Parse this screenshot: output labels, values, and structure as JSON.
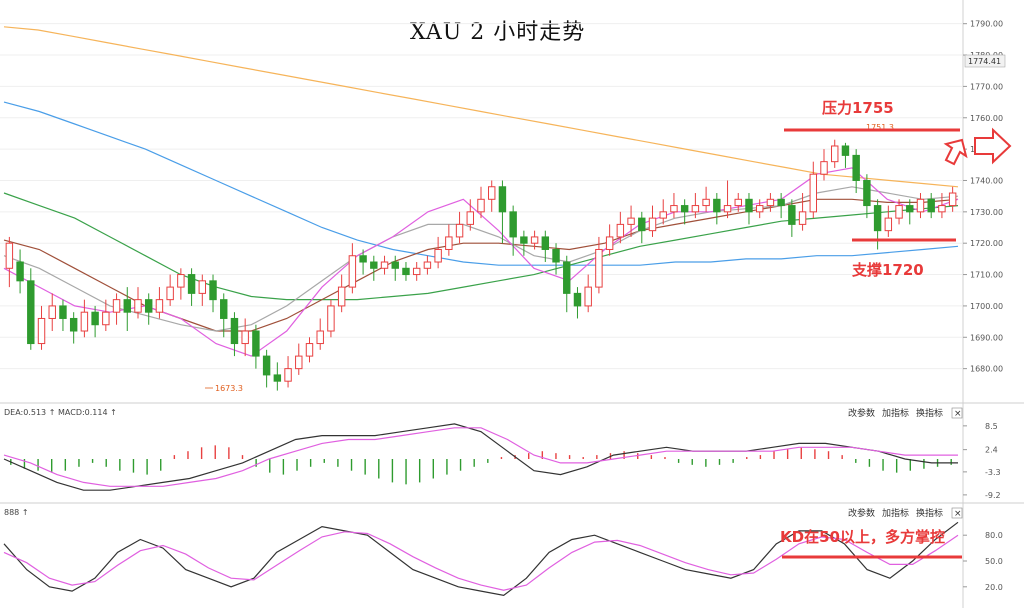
{
  "title": "XAU 2 小时走势",
  "panels": {
    "macd": {
      "header_dea": "DEA:0.513 ↑",
      "header_macd": "MACD:0.114 ↑",
      "ticks": [
        "8.5",
        "2.4",
        "-3.3",
        "-9.2"
      ]
    },
    "kd": {
      "header": "888 ↑",
      "ticks": [
        "80.0",
        "50.0",
        "20.0"
      ]
    },
    "controls": {
      "params": "改参数",
      "add": "加指标",
      "switch": "换指标",
      "close": "×"
    }
  },
  "annotations": {
    "resistance": "压力1755",
    "support": "支撑1720",
    "kd_note": "KD在50以上，多方掌控",
    "low_label": "1673.3",
    "price_tag": "1774.41",
    "high_label": "1751.3"
  },
  "colors": {
    "up": "#e84040",
    "down": "#2f9b2f",
    "annotation": "#e83a3a",
    "ma_orange": "#f6b45a",
    "ma_blue": "#4a9ee8",
    "ma_green": "#3aa24a",
    "ma_brown": "#a0503a",
    "ma_gray": "#a8a8a8",
    "ma_pink": "#e060e0",
    "k_line": "#333333",
    "d_line": "#e060e0"
  },
  "chart_data": {
    "type": "candlestick",
    "title": "XAU 2 小时走势",
    "y_ticks": [
      1790.0,
      1780.0,
      1770.0,
      1760.0,
      1750.0,
      1740.0,
      1730.0,
      1720.0,
      1710.0,
      1700.0,
      1690.0,
      1680.0
    ],
    "ylim": [
      1670,
      1795
    ],
    "current_price": 1774.41,
    "candles": [
      [
        1712,
        1720,
        1706,
        1722
      ],
      [
        1714,
        1708,
        1704,
        1718
      ],
      [
        1708,
        1688,
        1686,
        1712
      ],
      [
        1688,
        1696,
        1686,
        1700
      ],
      [
        1696,
        1700,
        1692,
        1704
      ],
      [
        1700,
        1696,
        1692,
        1702
      ],
      [
        1696,
        1692,
        1688,
        1698
      ],
      [
        1692,
        1698,
        1690,
        1702
      ],
      [
        1698,
        1694,
        1690,
        1700
      ],
      [
        1694,
        1698,
        1692,
        1702
      ],
      [
        1698,
        1702,
        1694,
        1704
      ],
      [
        1702,
        1698,
        1692,
        1706
      ],
      [
        1698,
        1702,
        1696,
        1706
      ],
      [
        1702,
        1698,
        1694,
        1704
      ],
      [
        1698,
        1702,
        1696,
        1706
      ],
      [
        1702,
        1706,
        1700,
        1710
      ],
      [
        1706,
        1710,
        1702,
        1712
      ],
      [
        1710,
        1704,
        1700,
        1712
      ],
      [
        1704,
        1708,
        1700,
        1710
      ],
      [
        1708,
        1702,
        1698,
        1710
      ],
      [
        1702,
        1696,
        1690,
        1704
      ],
      [
        1696,
        1688,
        1684,
        1698
      ],
      [
        1688,
        1692,
        1684,
        1696
      ],
      [
        1692,
        1684,
        1680,
        1694
      ],
      [
        1684,
        1678,
        1674,
        1686
      ],
      [
        1678,
        1676,
        1673,
        1682
      ],
      [
        1676,
        1680,
        1674,
        1684
      ],
      [
        1680,
        1684,
        1678,
        1688
      ],
      [
        1684,
        1688,
        1682,
        1690
      ],
      [
        1688,
        1692,
        1686,
        1696
      ],
      [
        1692,
        1700,
        1690,
        1702
      ],
      [
        1700,
        1706,
        1698,
        1710
      ],
      [
        1706,
        1716,
        1704,
        1720
      ],
      [
        1716,
        1714,
        1710,
        1718
      ],
      [
        1714,
        1712,
        1708,
        1716
      ],
      [
        1712,
        1714,
        1710,
        1716
      ],
      [
        1714,
        1712,
        1708,
        1716
      ],
      [
        1712,
        1710,
        1708,
        1714
      ],
      [
        1710,
        1712,
        1708,
        1714
      ],
      [
        1712,
        1714,
        1710,
        1716
      ],
      [
        1714,
        1718,
        1712,
        1722
      ],
      [
        1718,
        1722,
        1716,
        1726
      ],
      [
        1722,
        1726,
        1720,
        1730
      ],
      [
        1726,
        1730,
        1724,
        1734
      ],
      [
        1730,
        1734,
        1728,
        1738
      ],
      [
        1734,
        1738,
        1730,
        1740
      ],
      [
        1738,
        1730,
        1720,
        1740
      ],
      [
        1730,
        1722,
        1716,
        1732
      ],
      [
        1722,
        1720,
        1716,
        1724
      ],
      [
        1720,
        1722,
        1718,
        1724
      ],
      [
        1722,
        1718,
        1714,
        1724
      ],
      [
        1718,
        1714,
        1710,
        1720
      ],
      [
        1714,
        1704,
        1698,
        1716
      ],
      [
        1704,
        1700,
        1696,
        1706
      ],
      [
        1700,
        1706,
        1698,
        1710
      ],
      [
        1706,
        1718,
        1704,
        1722
      ],
      [
        1718,
        1722,
        1716,
        1726
      ],
      [
        1722,
        1726,
        1720,
        1730
      ],
      [
        1726,
        1728,
        1722,
        1732
      ],
      [
        1728,
        1724,
        1720,
        1730
      ],
      [
        1724,
        1728,
        1722,
        1732
      ],
      [
        1728,
        1730,
        1726,
        1734
      ],
      [
        1730,
        1732,
        1728,
        1736
      ],
      [
        1732,
        1730,
        1726,
        1734
      ],
      [
        1730,
        1732,
        1728,
        1736
      ],
      [
        1732,
        1734,
        1730,
        1738
      ],
      [
        1734,
        1730,
        1726,
        1736
      ],
      [
        1730,
        1732,
        1728,
        1740
      ],
      [
        1732,
        1734,
        1730,
        1736
      ],
      [
        1734,
        1730,
        1726,
        1736
      ],
      [
        1730,
        1732,
        1728,
        1734
      ],
      [
        1732,
        1734,
        1730,
        1736
      ],
      [
        1734,
        1732,
        1728,
        1736
      ],
      [
        1732,
        1726,
        1722,
        1734
      ],
      [
        1726,
        1730,
        1724,
        1736
      ],
      [
        1730,
        1742,
        1728,
        1746
      ],
      [
        1742,
        1746,
        1740,
        1750
      ],
      [
        1746,
        1751,
        1744,
        1753
      ],
      [
        1751,
        1748,
        1744,
        1752
      ],
      [
        1748,
        1740,
        1736,
        1750
      ],
      [
        1740,
        1732,
        1728,
        1742
      ],
      [
        1732,
        1724,
        1718,
        1734
      ],
      [
        1724,
        1728,
        1722,
        1732
      ],
      [
        1728,
        1732,
        1726,
        1734
      ],
      [
        1732,
        1730,
        1726,
        1734
      ],
      [
        1730,
        1734,
        1728,
        1736
      ],
      [
        1734,
        1730,
        1728,
        1736
      ],
      [
        1730,
        1732,
        1728,
        1736
      ],
      [
        1732,
        1736,
        1730,
        1738
      ]
    ],
    "moving_averages": [
      {
        "values": [
          1789,
          1788,
          1786,
          1784,
          1782,
          1780,
          1778,
          1776,
          1774,
          1772,
          1770,
          1768,
          1766,
          1764,
          1762,
          1760,
          1758,
          1756,
          1754,
          1752,
          1750,
          1748,
          1746,
          1744,
          1742,
          1741,
          1740,
          1739,
          1738
        ]
      },
      {
        "values": [
          1765,
          1762,
          1758,
          1754,
          1750,
          1745,
          1740,
          1735,
          1730,
          1725,
          1721,
          1718,
          1716,
          1714,
          1713,
          1713,
          1713,
          1713,
          1713,
          1714,
          1714,
          1715,
          1715,
          1716,
          1716,
          1717,
          1718,
          1719
        ]
      },
      {
        "values": [
          1736,
          1732,
          1728,
          1722,
          1716,
          1710,
          1706,
          1703,
          1702,
          1702,
          1702,
          1703,
          1704,
          1706,
          1708,
          1710,
          1713,
          1716,
          1719,
          1721,
          1723,
          1725,
          1727,
          1728,
          1729,
          1730,
          1731,
          1732
        ]
      },
      {
        "values": [
          1721,
          1718,
          1712,
          1706,
          1700,
          1696,
          1692,
          1692,
          1696,
          1702,
          1708,
          1714,
          1718,
          1720,
          1720,
          1719,
          1718,
          1720,
          1724,
          1726,
          1728,
          1730,
          1732,
          1734,
          1734,
          1733,
          1733,
          1734
        ]
      },
      {
        "values": [
          1716,
          1712,
          1706,
          1700,
          1697,
          1694,
          1692,
          1694,
          1700,
          1708,
          1716,
          1722,
          1726,
          1726,
          1722,
          1716,
          1714,
          1718,
          1724,
          1728,
          1730,
          1731,
          1732,
          1736,
          1738,
          1736,
          1734,
          1735
        ]
      },
      {
        "values": [
          1712,
          1706,
          1700,
          1698,
          1700,
          1696,
          1688,
          1684,
          1692,
          1706,
          1716,
          1722,
          1730,
          1734,
          1724,
          1712,
          1708,
          1718,
          1726,
          1730,
          1730,
          1732,
          1734,
          1742,
          1744,
          1734,
          1730,
          1734
        ]
      }
    ],
    "macd": {
      "histogram": [
        -1.5,
        -2.5,
        -3,
        -3.5,
        -3,
        -2,
        -1,
        -2,
        -3,
        -3.5,
        -4,
        -3,
        1,
        2,
        3,
        3.5,
        3,
        1,
        -2,
        -3.5,
        -4,
        -3,
        -2,
        -1,
        -2,
        -3,
        -4,
        -5,
        -6,
        -6.5,
        -6,
        -5,
        -4,
        -3,
        -2,
        -1,
        0.5,
        1,
        1.5,
        2,
        1.5,
        1,
        0.5,
        1,
        1.5,
        2,
        1.5,
        1,
        0.5,
        -1,
        -1.5,
        -2,
        -1.5,
        -1,
        0.5,
        1,
        2,
        2.5,
        3,
        2.5,
        2,
        1,
        -1,
        -2,
        -3,
        -3.5,
        -3,
        -2.5,
        -2,
        -1.5
      ],
      "dif": [
        0,
        -3,
        -6,
        -8,
        -8,
        -7,
        -6,
        -5,
        -3,
        -1,
        2,
        5,
        6,
        6,
        6,
        7,
        8,
        9,
        7,
        2,
        -3,
        -4,
        -2,
        1,
        2,
        3,
        2,
        2,
        2,
        3,
        4,
        4,
        3,
        2,
        0,
        -1,
        -1
      ],
      "dea": [
        1,
        -1,
        -4,
        -6,
        -7,
        -7,
        -7,
        -6,
        -5,
        -3,
        0,
        2,
        4,
        5,
        5,
        6,
        7,
        8,
        8,
        5,
        1,
        -1,
        -1,
        0,
        1,
        2,
        2,
        2,
        2,
        2,
        3,
        3,
        3,
        2,
        1,
        1,
        1
      ]
    },
    "kd": {
      "k": [
        70,
        40,
        20,
        15,
        30,
        60,
        75,
        65,
        40,
        30,
        20,
        30,
        60,
        75,
        90,
        85,
        80,
        60,
        40,
        30,
        20,
        15,
        10,
        30,
        60,
        75,
        80,
        70,
        60,
        50,
        40,
        35,
        30,
        40,
        70,
        85,
        85,
        70,
        40,
        30,
        50,
        75,
        95
      ],
      "d": [
        60,
        48,
        30,
        22,
        26,
        45,
        62,
        68,
        58,
        42,
        30,
        28,
        45,
        62,
        78,
        84,
        82,
        70,
        55,
        42,
        30,
        22,
        16,
        22,
        42,
        60,
        72,
        74,
        68,
        58,
        48,
        40,
        34,
        36,
        52,
        70,
        78,
        75,
        60,
        46,
        46,
        62,
        80
      ]
    }
  }
}
